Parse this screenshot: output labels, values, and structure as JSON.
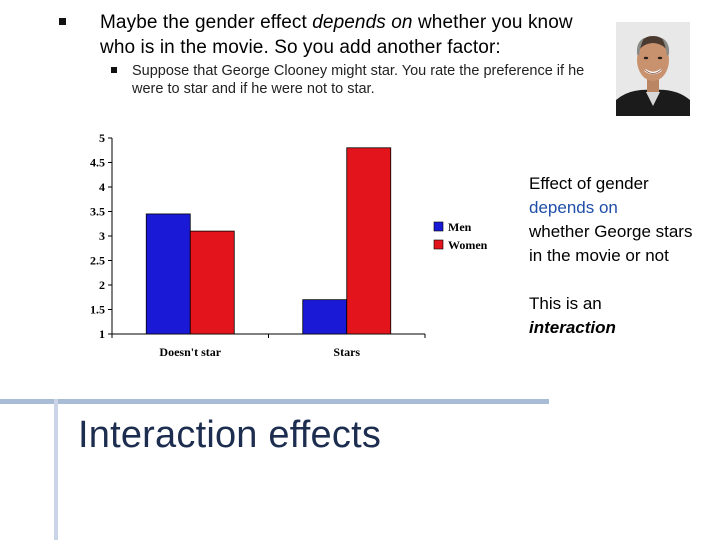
{
  "slide": {
    "bullet_main_a": "Maybe the gender effect ",
    "bullet_main_em": "depends on",
    "bullet_main_b": " whether you know who is in the movie.  So you add another factor:",
    "bullet_sub": "Suppose that George Clooney might star. You rate the preference if he were to star and if he were not to star.",
    "note_hl": "Effect of gender depends on",
    "note_line1": "Effect of gender",
    "note_rest": "whether George stars in the movie or not",
    "note2_a": "This is an ",
    "note2_em": "interaction",
    "title": "Interaction effects"
  },
  "chart_data": {
    "type": "bar",
    "categories": [
      "Doesn't star",
      "Stars"
    ],
    "series": [
      {
        "name": "Men",
        "values": [
          3.45,
          1.7
        ],
        "color": "#1a1ad6"
      },
      {
        "name": "Women",
        "values": [
          3.1,
          4.8
        ],
        "color": "#e3141c"
      }
    ],
    "ylim": [
      1,
      5
    ],
    "yticks": [
      "1",
      "1.5",
      "2",
      "2.5",
      "3",
      "3.5",
      "4",
      "4.5",
      "5"
    ],
    "legend_position": "right",
    "grid": false
  }
}
